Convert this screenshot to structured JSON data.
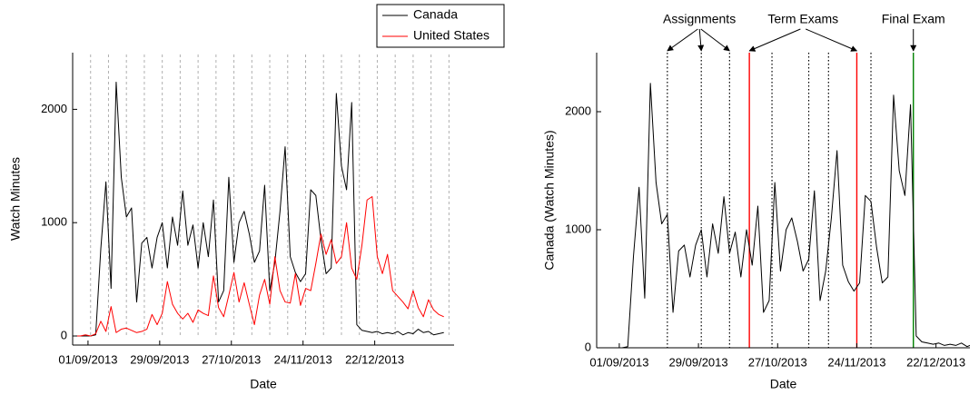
{
  "chart_data": [
    {
      "type": "line",
      "xlabel": "Date",
      "ylabel": "Watch Minutes",
      "x": [
        "27/08/2013",
        "29/08/2013",
        "31/08/2013",
        "02/09/2013",
        "04/09/2013",
        "06/09/2013",
        "08/09/2013",
        "10/09/2013",
        "12/09/2013",
        "14/09/2013",
        "16/09/2013",
        "18/09/2013",
        "20/09/2013",
        "22/09/2013",
        "24/09/2013",
        "26/09/2013",
        "28/09/2013",
        "30/09/2013",
        "02/10/2013",
        "04/10/2013",
        "06/10/2013",
        "08/10/2013",
        "10/10/2013",
        "12/10/2013",
        "14/10/2013",
        "16/10/2013",
        "18/10/2013",
        "20/10/2013",
        "22/10/2013",
        "24/10/2013",
        "26/10/2013",
        "28/10/2013",
        "30/10/2013",
        "01/11/2013",
        "03/11/2013",
        "05/11/2013",
        "07/11/2013",
        "09/11/2013",
        "11/11/2013",
        "13/11/2013",
        "15/11/2013",
        "17/11/2013",
        "19/11/2013",
        "21/11/2013",
        "23/11/2013",
        "25/11/2013",
        "27/11/2013",
        "29/11/2013",
        "01/12/2013",
        "03/12/2013",
        "05/12/2013",
        "07/12/2013",
        "09/12/2013",
        "11/12/2013",
        "13/12/2013",
        "15/12/2013",
        "17/12/2013",
        "19/12/2013",
        "21/12/2013",
        "23/12/2013",
        "25/12/2013",
        "27/12/2013",
        "29/12/2013",
        "31/12/2013",
        "02/01/2014",
        "04/01/2014",
        "06/01/2014",
        "08/01/2014",
        "10/01/2014",
        "12/01/2014",
        "14/01/2014",
        "16/01/2014",
        "18/01/2014"
      ],
      "series": [
        {
          "name": "Canada",
          "color": "#000000",
          "values": [
            0,
            0,
            0,
            0,
            10,
            770,
            1360,
            420,
            2240,
            1400,
            1050,
            1130,
            300,
            820,
            870,
            600,
            870,
            1000,
            600,
            1050,
            800,
            1280,
            800,
            980,
            600,
            1000,
            700,
            1200,
            300,
            400,
            1400,
            650,
            1000,
            1100,
            900,
            650,
            750,
            1330,
            400,
            650,
            1100,
            1670,
            700,
            560,
            480,
            550,
            1290,
            1240,
            850,
            550,
            600,
            2140,
            1500,
            1290,
            2060,
            100,
            50,
            40,
            30,
            40,
            20,
            30,
            20,
            40,
            10,
            30,
            20,
            60,
            30,
            40,
            10,
            20,
            30
          ]
        },
        {
          "name": "United States",
          "color": "#ff0000",
          "values": [
            0,
            0,
            10,
            0,
            20,
            130,
            40,
            260,
            30,
            60,
            70,
            50,
            30,
            40,
            60,
            190,
            100,
            200,
            480,
            280,
            200,
            150,
            200,
            120,
            230,
            200,
            180,
            530,
            250,
            170,
            360,
            560,
            300,
            470,
            280,
            100,
            360,
            500,
            280,
            700,
            400,
            300,
            290,
            550,
            270,
            420,
            400,
            640,
            900,
            720,
            850,
            640,
            700,
            1000,
            600,
            500,
            800,
            1200,
            1230,
            700,
            550,
            720,
            400,
            350,
            300,
            240,
            400,
            250,
            170,
            320,
            230,
            190,
            170
          ]
        }
      ],
      "xlim": [
        "26/08/2013",
        "22/01/2014"
      ],
      "xticks": [
        "01/09/2013",
        "29/09/2013",
        "27/10/2013",
        "24/11/2013",
        "22/12/2013"
      ],
      "ylim": [
        -80,
        2500
      ],
      "yticks": [
        0,
        1000,
        2000
      ],
      "xgrid": [
        "02/09/2013",
        "09/09/2013",
        "16/09/2013",
        "23/09/2013",
        "30/09/2013",
        "07/10/2013",
        "14/10/2013",
        "21/10/2013",
        "28/10/2013",
        "04/11/2013",
        "11/11/2013",
        "18/11/2013",
        "25/11/2013",
        "02/12/2013",
        "09/12/2013",
        "16/12/2013",
        "23/12/2013",
        "30/12/2013",
        "06/01/2014",
        "13/01/2014",
        "20/01/2014"
      ],
      "legend": "upper right"
    },
    {
      "type": "line",
      "xlabel": "Date",
      "ylabel": "Canada (Watch Minutes)",
      "x": [
        "27/08/2013",
        "29/08/2013",
        "31/08/2013",
        "02/09/2013",
        "04/09/2013",
        "06/09/2013",
        "08/09/2013",
        "10/09/2013",
        "12/09/2013",
        "14/09/2013",
        "16/09/2013",
        "18/09/2013",
        "20/09/2013",
        "22/09/2013",
        "24/09/2013",
        "26/09/2013",
        "28/09/2013",
        "30/09/2013",
        "02/10/2013",
        "04/10/2013",
        "06/10/2013",
        "08/10/2013",
        "10/10/2013",
        "12/10/2013",
        "14/10/2013",
        "16/10/2013",
        "18/10/2013",
        "20/10/2013",
        "22/10/2013",
        "24/10/2013",
        "26/10/2013",
        "28/10/2013",
        "30/10/2013",
        "01/11/2013",
        "03/11/2013",
        "05/11/2013",
        "07/11/2013",
        "09/11/2013",
        "11/11/2013",
        "13/11/2013",
        "15/11/2013",
        "17/11/2013",
        "19/11/2013",
        "21/11/2013",
        "23/11/2013",
        "25/11/2013",
        "27/11/2013",
        "29/11/2013",
        "01/12/2013",
        "03/12/2013",
        "05/12/2013",
        "07/12/2013",
        "09/12/2013",
        "11/12/2013",
        "13/12/2013",
        "15/12/2013",
        "17/12/2013",
        "19/12/2013",
        "21/12/2013",
        "23/12/2013",
        "25/12/2013",
        "27/12/2013",
        "29/12/2013",
        "31/12/2013",
        "02/01/2014",
        "04/01/2014",
        "06/01/2014",
        "08/01/2014",
        "10/01/2014",
        "12/01/2014",
        "14/01/2014",
        "16/01/2014",
        "18/01/2014"
      ],
      "series": [
        {
          "color": "#000000",
          "values": [
            0,
            0,
            0,
            0,
            10,
            770,
            1360,
            420,
            2240,
            1400,
            1050,
            1130,
            300,
            820,
            870,
            600,
            870,
            1000,
            600,
            1050,
            800,
            1280,
            800,
            980,
            600,
            1000,
            700,
            1200,
            300,
            400,
            1400,
            650,
            1000,
            1100,
            900,
            650,
            750,
            1330,
            400,
            650,
            1100,
            1670,
            700,
            560,
            480,
            550,
            1290,
            1240,
            850,
            550,
            600,
            2140,
            1500,
            1290,
            2060,
            100,
            50,
            40,
            30,
            40,
            20,
            30,
            20,
            40,
            10,
            30,
            20,
            60,
            30,
            40,
            10,
            20,
            30
          ]
        }
      ],
      "xlim": [
        "24/08/2013",
        "03/01/2014"
      ],
      "xticks": [
        "01/09/2013",
        "29/09/2013",
        "27/10/2013",
        "24/11/2013",
        "22/12/2013"
      ],
      "ylim": [
        0,
        2500
      ],
      "yticks": [
        0,
        1000,
        2000
      ],
      "events": [
        {
          "label": "Assignments",
          "color": "#000000",
          "dash": "dotted",
          "x": [
            "18/09/2013",
            "30/09/2013",
            "10/10/2013"
          ]
        },
        {
          "label": "Term Exams",
          "color": "#ff0000",
          "dash": "solid",
          "x": [
            "17/10/2013",
            "24/11/2013"
          ]
        },
        {
          "label": "Final Exam",
          "color": "#008000",
          "dash": "solid",
          "x": [
            "14/12/2013"
          ]
        },
        {
          "color": "#000000",
          "dash": "dotted",
          "x": [
            "25/10/2013",
            "07/11/2013",
            "14/11/2013",
            "29/11/2013"
          ]
        }
      ]
    }
  ]
}
